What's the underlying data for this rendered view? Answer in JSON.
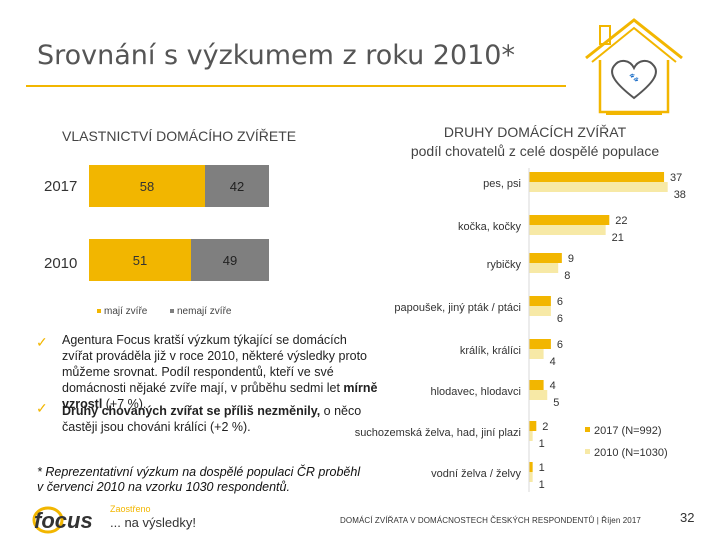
{
  "slide": {
    "title": "Srovnání s výzkumem z roku 2010*",
    "page_number": "32",
    "footer": "DOMÁCÍ ZVÍŘATA V DOMÁCNOSTECH ČESKÝCH RESPONDENTŮ | Říjen 2017",
    "logo_name": "focus",
    "logo_tagline_top": "Zaostřeno",
    "logo_tagline_bottom": "... na výsledky!"
  },
  "ownership": {
    "title": "VLASTNICTVÍ DOMÁCÍHO ZVÍŘETE",
    "legend": [
      "mají zvíře",
      "nemají zvíře"
    ]
  },
  "types": {
    "title": "DRUHY DOMÁCÍCH ZVÍŘAT",
    "subtitle": "podíl chovatelů z celé dospělé populace"
  },
  "notes": [
    {
      "text": "Agentura Focus kratší výzkum týkající se domácích zvířat prováděla již v roce 2010, některé výsledky proto můžeme srovnat. Podíl respondentů, kteří ve své domácnosti nějaké zvíře mají, v průběhu sedmi let ",
      "bold": "mírně vzrostl",
      "tail": " (+7 %)."
    },
    {
      "text": "",
      "bold": "Druhy chovaných zvířat se příliš nezměnily,",
      "tail": " o něco častěji jsou chováni králíci (+2 %)."
    }
  ],
  "footnote": "* Reprezentativní výzkum na dospělé populaci ČR proběhl v červenci 2010 na vzorku 1030 respondentů.",
  "colors": {
    "accent": "#f2b600",
    "accent_light": "#f7e9a6",
    "dark_gray": "#7f7f7f",
    "title_text": "#555555"
  },
  "chart_data": [
    {
      "type": "bar",
      "orientation": "horizontal-stacked-100",
      "title": "VLASTNICTVÍ DOMÁCÍHO ZVÍŘETE",
      "categories": [
        "2017",
        "2010"
      ],
      "series": [
        {
          "name": "mají zvíře",
          "values": [
            58,
            51
          ],
          "color": "#f2b600"
        },
        {
          "name": "nemají zvíře",
          "values": [
            42,
            49
          ],
          "color": "#7f7f7f"
        }
      ],
      "xlim": [
        0,
        100
      ]
    },
    {
      "type": "bar",
      "orientation": "horizontal-grouped",
      "title": "DRUHY DOMÁCÍCH ZVÍŘAT",
      "subtitle": "podíl chovatelů z celé dospělé populace",
      "categories": [
        "pes, psi",
        "kočka, kočky",
        "rybičky",
        "papoušek, jiný pták / ptáci",
        "králík, králíci",
        "hlodavec, hlodavci",
        "suchozemská želva, had, jiní plazi",
        "vodní želva / želvy"
      ],
      "series": [
        {
          "name": "2017 (N=992)",
          "values": [
            37,
            22,
            9,
            6,
            6,
            4,
            2,
            1
          ],
          "color": "#f2b600"
        },
        {
          "name": "2010 (N=1030)",
          "values": [
            38,
            21,
            8,
            6,
            4,
            5,
            1,
            1
          ],
          "color": "#f7e9a6"
        }
      ],
      "legend_position": "bottom-right"
    }
  ]
}
